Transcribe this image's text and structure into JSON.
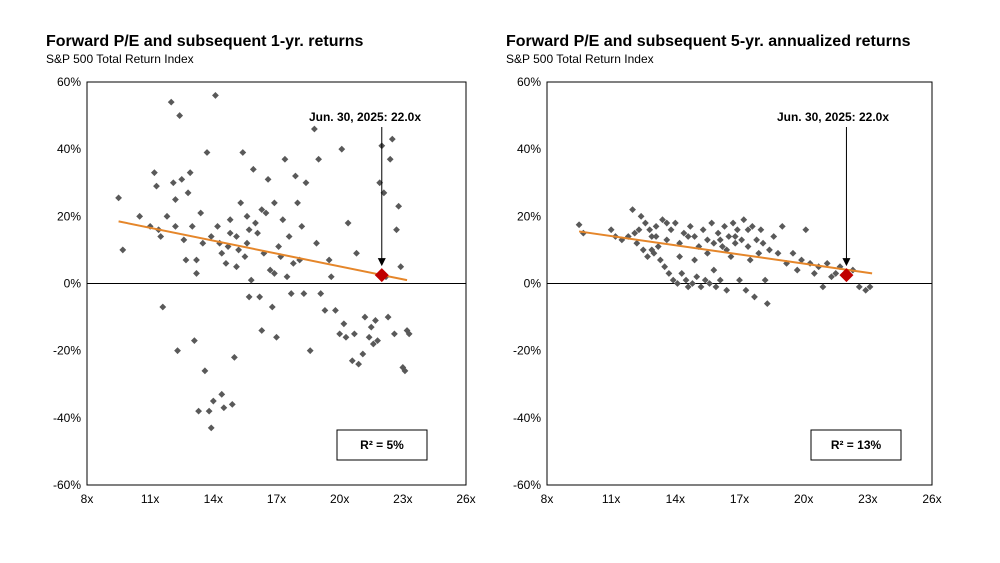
{
  "colors": {
    "points": "#595959",
    "trend": "#E5862A",
    "highlight": "#C00000",
    "axis": "#000000"
  },
  "chart_data": [
    {
      "type": "scatter",
      "title": "Forward P/E and subsequent 1-yr. returns",
      "subtitle": "S&P 500 Total Return Index",
      "xlim": [
        8,
        26
      ],
      "ylim": [
        -60,
        60
      ],
      "xticks": [
        8,
        11,
        14,
        17,
        20,
        23,
        26
      ],
      "xtick_labels": [
        "8x",
        "11x",
        "14x",
        "17x",
        "20x",
        "23x",
        "26x"
      ],
      "yticks": [
        -60,
        -40,
        -20,
        0,
        20,
        40,
        60
      ],
      "ytick_labels": [
        "-60%",
        "-40%",
        "-20%",
        "0%",
        "20%",
        "40%",
        "60%"
      ],
      "points": [
        [
          9.5,
          25.5
        ],
        [
          9.7,
          10
        ],
        [
          11,
          17
        ],
        [
          11.2,
          33
        ],
        [
          11.3,
          29
        ],
        [
          11.4,
          16
        ],
        [
          11.6,
          -7
        ],
        [
          11.8,
          20
        ],
        [
          12,
          54
        ],
        [
          12.1,
          30
        ],
        [
          12.2,
          17
        ],
        [
          12.3,
          -20
        ],
        [
          12.4,
          50
        ],
        [
          12.5,
          31
        ],
        [
          12.6,
          13
        ],
        [
          12.7,
          7
        ],
        [
          12.8,
          27
        ],
        [
          12.9,
          33
        ],
        [
          13,
          17
        ],
        [
          13.1,
          -17
        ],
        [
          13.2,
          3
        ],
        [
          13.3,
          -38
        ],
        [
          13.5,
          12
        ],
        [
          13.6,
          -26
        ],
        [
          13.7,
          39
        ],
        [
          13.8,
          -38
        ],
        [
          13.9,
          -43
        ],
        [
          14,
          -35
        ],
        [
          14.1,
          56
        ],
        [
          14.2,
          17
        ],
        [
          14.3,
          12
        ],
        [
          14.4,
          -33
        ],
        [
          14.5,
          -37
        ],
        [
          14.6,
          6
        ],
        [
          14.8,
          15
        ],
        [
          14.9,
          -36
        ],
        [
          15,
          -22
        ],
        [
          15.1,
          14
        ],
        [
          15.3,
          24
        ],
        [
          15.4,
          39
        ],
        [
          15.5,
          8
        ],
        [
          15.6,
          20
        ],
        [
          15.7,
          -4
        ],
        [
          15.8,
          1
        ],
        [
          15.9,
          34
        ],
        [
          16,
          18
        ],
        [
          16.1,
          15
        ],
        [
          16.2,
          -4
        ],
        [
          16.3,
          -14
        ],
        [
          16.5,
          21
        ],
        [
          16.6,
          31
        ],
        [
          16.7,
          4
        ],
        [
          16.8,
          -7
        ],
        [
          16.9,
          24
        ],
        [
          17,
          -16
        ],
        [
          17.1,
          11
        ],
        [
          17.3,
          19
        ],
        [
          17.4,
          37
        ],
        [
          17.5,
          2
        ],
        [
          17.6,
          14
        ],
        [
          17.7,
          -3
        ],
        [
          17.9,
          32
        ],
        [
          18,
          24
        ],
        [
          18.1,
          7
        ],
        [
          18.3,
          -3
        ],
        [
          18.4,
          30
        ],
        [
          18.6,
          -20
        ],
        [
          18.8,
          46
        ],
        [
          18.9,
          12
        ],
        [
          19,
          37
        ],
        [
          19.1,
          -3
        ],
        [
          19.3,
          -8
        ],
        [
          19.5,
          7
        ],
        [
          19.6,
          2
        ],
        [
          19.8,
          -8
        ],
        [
          20,
          -15
        ],
        [
          20.1,
          40
        ],
        [
          20.2,
          -12
        ],
        [
          20.3,
          -16
        ],
        [
          20.4,
          18
        ],
        [
          20.6,
          -23
        ],
        [
          20.7,
          -15
        ],
        [
          20.8,
          9
        ],
        [
          20.9,
          -24
        ],
        [
          21.1,
          -21
        ],
        [
          21.2,
          -10
        ],
        [
          21.4,
          -16
        ],
        [
          21.5,
          -13
        ],
        [
          21.6,
          -18
        ],
        [
          21.7,
          -11
        ],
        [
          21.8,
          -17
        ],
        [
          21.9,
          30
        ],
        [
          22,
          41
        ],
        [
          22.1,
          27
        ],
        [
          22.2,
          2
        ],
        [
          22.3,
          -10
        ],
        [
          22.4,
          37
        ],
        [
          22.5,
          43
        ],
        [
          22.6,
          -15
        ],
        [
          22.7,
          16
        ],
        [
          22.8,
          23
        ],
        [
          22.9,
          5
        ],
        [
          23,
          -25
        ],
        [
          23.1,
          -26
        ],
        [
          23.2,
          -14
        ],
        [
          23.3,
          -15
        ],
        [
          10.5,
          20
        ],
        [
          11.5,
          14
        ],
        [
          12.2,
          25
        ],
        [
          13.4,
          21
        ],
        [
          14.7,
          11
        ],
        [
          15.2,
          10
        ],
        [
          16.4,
          9
        ],
        [
          17.8,
          6
        ],
        [
          18.2,
          17
        ],
        [
          14.8,
          19
        ],
        [
          13.9,
          14
        ],
        [
          15.6,
          12
        ],
        [
          16.9,
          3
        ],
        [
          17.2,
          8
        ],
        [
          15.7,
          16
        ],
        [
          16.3,
          22
        ],
        [
          14.4,
          9
        ],
        [
          15.1,
          5
        ],
        [
          13.2,
          7
        ]
      ],
      "trend_line": {
        "x": [
          9.5,
          23.2
        ],
        "y": [
          18.5,
          1
        ]
      },
      "highlight_point": {
        "x": 22,
        "y": 2.5
      },
      "annotation": "Jun. 30, 2025: 22.0x",
      "r2_label": "R² = 5%"
    },
    {
      "type": "scatter",
      "title": "Forward P/E and subsequent 5-yr. annualized returns",
      "subtitle": "S&P 500 Total Return Index",
      "xlim": [
        8,
        26
      ],
      "ylim": [
        -60,
        60
      ],
      "xticks": [
        8,
        11,
        14,
        17,
        20,
        23,
        26
      ],
      "xtick_labels": [
        "8x",
        "11x",
        "14x",
        "17x",
        "20x",
        "23x",
        "26x"
      ],
      "yticks": [
        -60,
        -40,
        -20,
        0,
        20,
        40,
        60
      ],
      "ytick_labels": [
        "-60%",
        "-40%",
        "-20%",
        "0%",
        "20%",
        "40%",
        "60%"
      ],
      "points": [
        [
          9.5,
          17.5
        ],
        [
          9.7,
          15
        ],
        [
          11,
          16
        ],
        [
          11.2,
          14
        ],
        [
          11.5,
          13
        ],
        [
          11.8,
          14
        ],
        [
          12,
          22
        ],
        [
          12.1,
          15
        ],
        [
          12.2,
          12
        ],
        [
          12.4,
          20
        ],
        [
          12.5,
          10
        ],
        [
          12.6,
          18
        ],
        [
          12.7,
          8
        ],
        [
          12.8,
          16
        ],
        [
          12.9,
          14
        ],
        [
          13,
          9
        ],
        [
          13.1,
          17
        ],
        [
          13.2,
          11
        ],
        [
          13.3,
          7
        ],
        [
          13.4,
          19
        ],
        [
          13.5,
          5
        ],
        [
          13.6,
          13
        ],
        [
          13.7,
          3
        ],
        [
          13.8,
          16
        ],
        [
          13.9,
          1
        ],
        [
          14,
          18
        ],
        [
          14.1,
          0
        ],
        [
          14.2,
          12
        ],
        [
          14.3,
          3
        ],
        [
          14.4,
          15
        ],
        [
          14.5,
          1
        ],
        [
          14.6,
          -1
        ],
        [
          14.7,
          17
        ],
        [
          14.8,
          0
        ],
        [
          14.9,
          14
        ],
        [
          15,
          2
        ],
        [
          15.1,
          11
        ],
        [
          15.2,
          -1
        ],
        [
          15.3,
          16
        ],
        [
          15.4,
          1
        ],
        [
          15.5,
          13
        ],
        [
          15.6,
          0
        ],
        [
          15.7,
          18
        ],
        [
          15.8,
          12
        ],
        [
          15.9,
          -1
        ],
        [
          16,
          15
        ],
        [
          16.1,
          1
        ],
        [
          16.2,
          11
        ],
        [
          16.3,
          17
        ],
        [
          16.4,
          10
        ],
        [
          16.5,
          14
        ],
        [
          16.6,
          8
        ],
        [
          16.7,
          18
        ],
        [
          16.8,
          12
        ],
        [
          16.9,
          16
        ],
        [
          17,
          1
        ],
        [
          17.1,
          13
        ],
        [
          17.2,
          19
        ],
        [
          17.3,
          -2
        ],
        [
          17.4,
          11
        ],
        [
          17.5,
          7
        ],
        [
          17.6,
          17
        ],
        [
          17.7,
          -4
        ],
        [
          17.8,
          13
        ],
        [
          17.9,
          9
        ],
        [
          18,
          16
        ],
        [
          18.2,
          1
        ],
        [
          18.3,
          -6
        ],
        [
          18.4,
          10
        ],
        [
          18.6,
          14
        ],
        [
          18.8,
          9
        ],
        [
          19,
          17
        ],
        [
          19.2,
          6
        ],
        [
          19.5,
          9
        ],
        [
          19.7,
          4
        ],
        [
          19.9,
          7
        ],
        [
          20.1,
          16
        ],
        [
          20.3,
          6
        ],
        [
          20.5,
          3
        ],
        [
          20.7,
          5
        ],
        [
          20.9,
          -1
        ],
        [
          21.1,
          6
        ],
        [
          21.3,
          2
        ],
        [
          21.5,
          3
        ],
        [
          21.7,
          5
        ],
        [
          22,
          2
        ],
        [
          22.3,
          4
        ],
        [
          22.6,
          -1
        ],
        [
          22.9,
          -2
        ],
        [
          23.1,
          -1
        ],
        [
          12.3,
          16
        ],
        [
          13.1,
          14
        ],
        [
          14.2,
          8
        ],
        [
          15.5,
          9
        ],
        [
          16.1,
          13
        ],
        [
          16.8,
          14
        ],
        [
          17.4,
          16
        ],
        [
          18.1,
          12
        ],
        [
          13.6,
          18
        ],
        [
          14.6,
          14
        ],
        [
          15.8,
          4
        ],
        [
          16.4,
          -2
        ],
        [
          14.9,
          7
        ],
        [
          12.9,
          10
        ]
      ],
      "trend_line": {
        "x": [
          9.5,
          23.2
        ],
        "y": [
          15.5,
          3
        ]
      },
      "highlight_point": {
        "x": 22,
        "y": 2.5
      },
      "annotation": "Jun. 30, 2025: 22.0x",
      "r2_label": "R² = 13%"
    }
  ]
}
